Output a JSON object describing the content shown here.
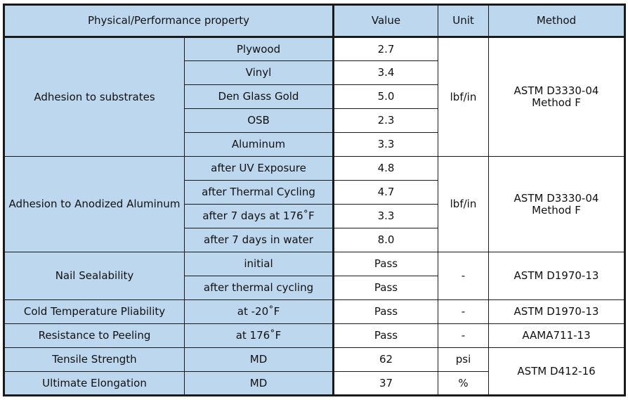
{
  "header": {
    "property": "Physical/Performance property",
    "value": "Value",
    "unit": "Unit",
    "method": "Method"
  },
  "groups": {
    "adhesion_substrates": {
      "label": "Adhesion to substrates",
      "unit": "lbf/in",
      "method_line1": "ASTM D3330-04",
      "method_line2": "Method F",
      "rows": [
        {
          "sub": "Plywood",
          "value": "2.7"
        },
        {
          "sub": "Vinyl",
          "value": "3.4"
        },
        {
          "sub": "Den Glass Gold",
          "value": "5.0"
        },
        {
          "sub": "OSB",
          "value": "2.3"
        },
        {
          "sub": "Aluminum",
          "value": "3.3"
        }
      ]
    },
    "adhesion_anodized": {
      "label": "Adhesion to Anodized Aluminum",
      "unit": "lbf/in",
      "method_line1": "ASTM D3330-04",
      "method_line2": "Method F",
      "rows": [
        {
          "sub": "after UV Exposure",
          "value": "4.8"
        },
        {
          "sub": "after Thermal Cycling",
          "value": "4.7"
        },
        {
          "sub": "after 7 days at 176˚F",
          "value": "3.3"
        },
        {
          "sub": "after 7 days in water",
          "value": "8.0"
        }
      ]
    },
    "nail_sealability": {
      "label": "Nail Sealability",
      "unit": "-",
      "method": "ASTM D1970-13",
      "rows": [
        {
          "sub": "initial",
          "value": "Pass"
        },
        {
          "sub": "after thermal cycling",
          "value": "Pass"
        }
      ]
    },
    "cold_temperature": {
      "label": "Cold Temperature Pliability",
      "sub": "at -20˚F",
      "value": "Pass",
      "unit": "-",
      "method": "ASTM D1970-13"
    },
    "resistance_peeling": {
      "label": "Resistance to Peeling",
      "sub": "at 176˚F",
      "value": "Pass",
      "unit": "-",
      "method": "AAMA711-13"
    },
    "tensile": {
      "label": "Tensile Strength",
      "sub": "MD",
      "value": "62",
      "unit": "psi"
    },
    "elongation": {
      "label": "Ultimate Elongation",
      "sub": "MD",
      "value": "37",
      "unit": "%"
    },
    "tensile_elongation_method": "ASTM D412-16"
  },
  "colors": {
    "header_fill": "#bdd7ee",
    "label_fill": "#bdd7ee",
    "value_fill": "#ffffff",
    "border": "#1a1a1a"
  }
}
